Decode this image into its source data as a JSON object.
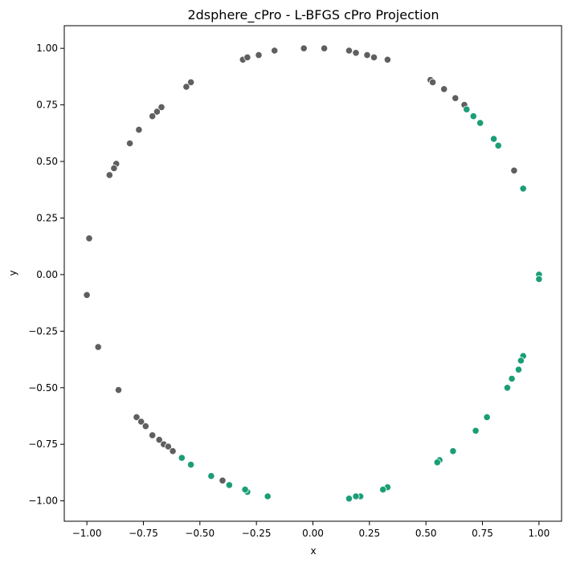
{
  "chart_data": {
    "type": "scatter",
    "title": "2dsphere_cPro - L-BFGS cPro Projection",
    "xlabel": "x",
    "ylabel": "y",
    "xlim": [
      -1.1,
      1.1
    ],
    "ylim": [
      -1.09,
      1.1
    ],
    "xticks": [
      -1.0,
      -0.75,
      -0.5,
      -0.25,
      0.0,
      0.25,
      0.5,
      0.75,
      1.0
    ],
    "xtick_labels": [
      "−1.00",
      "−0.75",
      "−0.50",
      "−0.25",
      "0.00",
      "0.25",
      "0.50",
      "0.75",
      "1.00"
    ],
    "yticks": [
      -1.0,
      -0.75,
      -0.5,
      -0.25,
      0.0,
      0.25,
      0.5,
      0.75,
      1.0
    ],
    "ytick_labels": [
      "−1.00",
      "−0.75",
      "−0.50",
      "−0.25",
      "0.00",
      "0.25",
      "0.50",
      "0.75",
      "1.00"
    ],
    "grid": false,
    "legend": "none",
    "colors": {
      "gray": "#5f5f5f",
      "green": "#1b9e77"
    },
    "series": [
      {
        "color_key": "gray",
        "points": [
          [
            -0.31,
            0.95
          ],
          [
            -0.29,
            0.96
          ],
          [
            -0.24,
            0.97
          ],
          [
            -0.17,
            0.99
          ],
          [
            -0.04,
            1.0
          ],
          [
            0.05,
            1.0
          ],
          [
            0.16,
            0.99
          ],
          [
            0.19,
            0.98
          ],
          [
            0.24,
            0.97
          ],
          [
            0.27,
            0.96
          ],
          [
            0.33,
            0.95
          ],
          [
            0.52,
            0.86
          ],
          [
            0.53,
            0.85
          ],
          [
            0.58,
            0.82
          ],
          [
            0.63,
            0.78
          ],
          [
            0.67,
            0.75
          ],
          [
            0.89,
            0.46
          ],
          [
            -0.54,
            0.85
          ],
          [
            -0.56,
            0.83
          ],
          [
            -0.67,
            0.74
          ],
          [
            -0.69,
            0.72
          ],
          [
            -0.71,
            0.7
          ],
          [
            -0.77,
            0.64
          ],
          [
            -0.81,
            0.58
          ],
          [
            -0.87,
            0.49
          ],
          [
            -0.88,
            0.47
          ],
          [
            -0.9,
            0.44
          ],
          [
            -0.99,
            0.16
          ],
          [
            -1.0,
            -0.09
          ],
          [
            -0.95,
            -0.32
          ],
          [
            -0.86,
            -0.51
          ],
          [
            -0.78,
            -0.63
          ],
          [
            -0.76,
            -0.65
          ],
          [
            -0.74,
            -0.67
          ],
          [
            -0.71,
            -0.71
          ],
          [
            -0.68,
            -0.73
          ],
          [
            -0.66,
            -0.75
          ],
          [
            -0.64,
            -0.76
          ],
          [
            -0.62,
            -0.78
          ],
          [
            -0.4,
            -0.91
          ]
        ]
      },
      {
        "color_key": "green",
        "points": [
          [
            0.68,
            0.73
          ],
          [
            0.71,
            0.7
          ],
          [
            0.74,
            0.67
          ],
          [
            0.8,
            0.6
          ],
          [
            0.82,
            0.57
          ],
          [
            0.93,
            0.38
          ],
          [
            1.0,
            0.0
          ],
          [
            1.0,
            -0.02
          ],
          [
            0.93,
            -0.36
          ],
          [
            0.92,
            -0.38
          ],
          [
            0.91,
            -0.42
          ],
          [
            0.88,
            -0.46
          ],
          [
            0.86,
            -0.5
          ],
          [
            0.77,
            -0.63
          ],
          [
            0.72,
            -0.69
          ],
          [
            0.62,
            -0.78
          ],
          [
            0.56,
            -0.82
          ],
          [
            0.55,
            -0.83
          ],
          [
            0.33,
            -0.94
          ],
          [
            0.31,
            -0.95
          ],
          [
            0.21,
            -0.98
          ],
          [
            0.19,
            -0.98
          ],
          [
            0.16,
            -0.99
          ],
          [
            -0.2,
            -0.98
          ],
          [
            -0.29,
            -0.96
          ],
          [
            -0.3,
            -0.95
          ],
          [
            -0.37,
            -0.93
          ],
          [
            -0.45,
            -0.89
          ],
          [
            -0.54,
            -0.84
          ],
          [
            -0.58,
            -0.81
          ]
        ]
      }
    ]
  }
}
